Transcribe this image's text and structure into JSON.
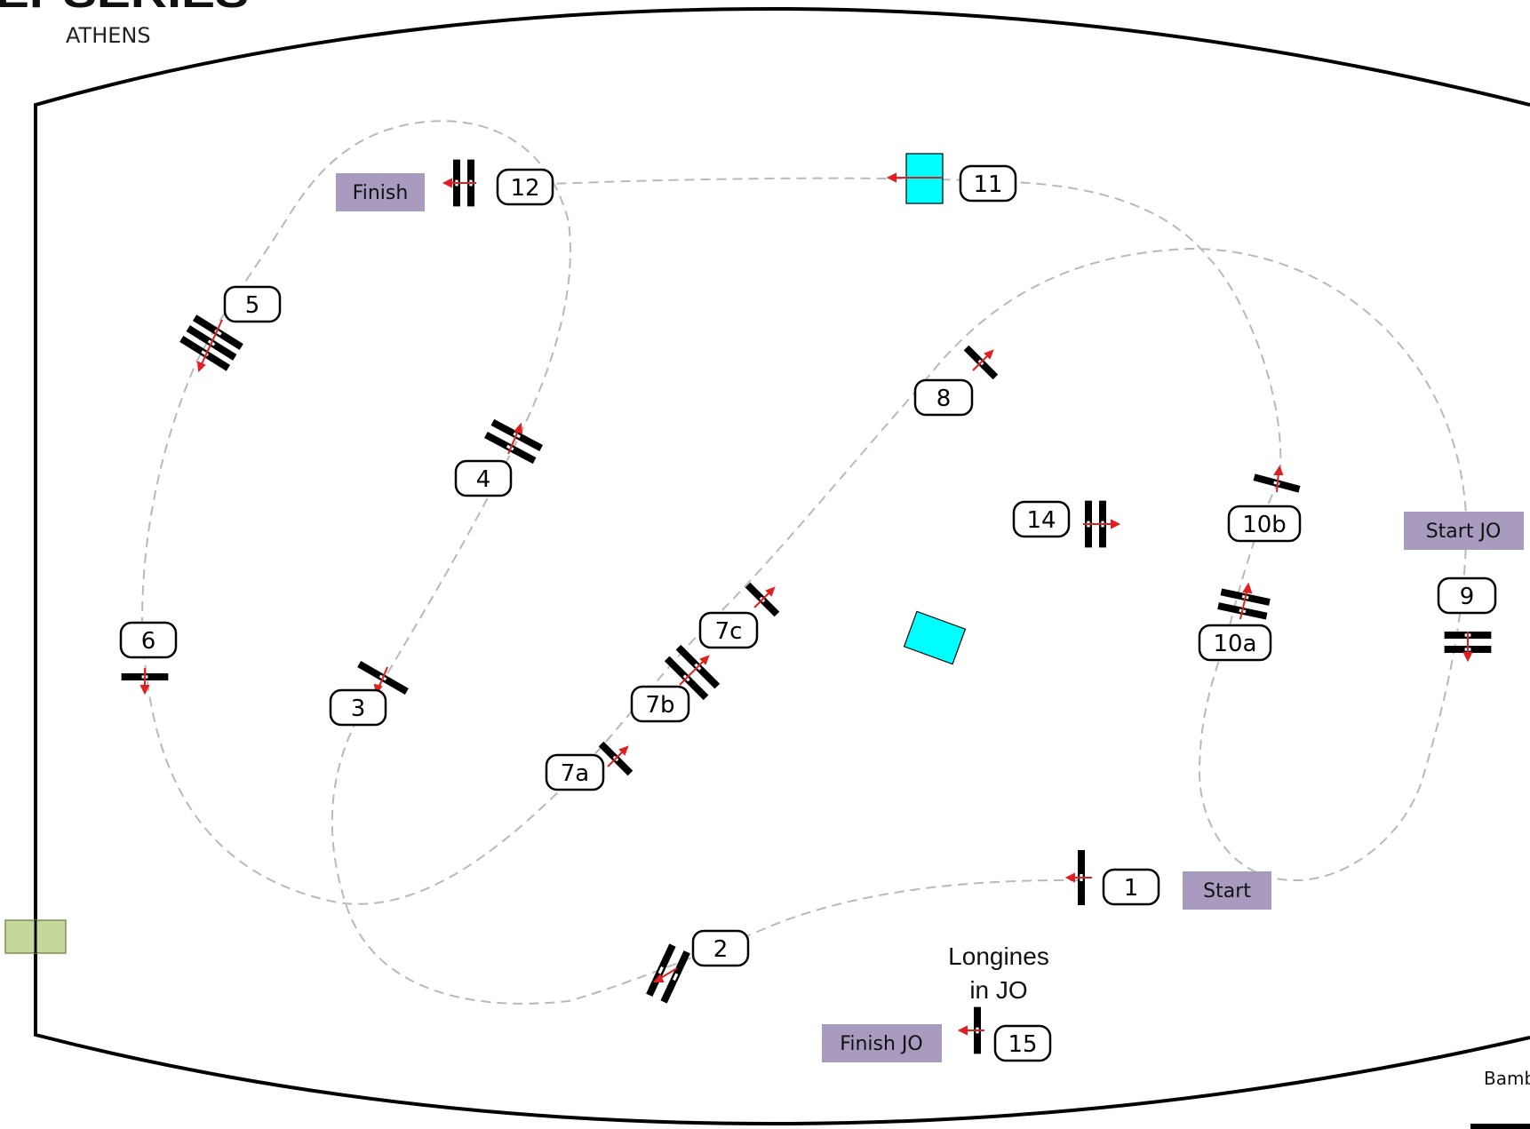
{
  "header": {
    "series_title": "LEPSERIES",
    "city": "ATHENS"
  },
  "footer": {
    "partial_text": "Bamb"
  },
  "note": {
    "line1": "Longines",
    "line2": "in JO"
  },
  "colors": {
    "label_box": "#a99bc0",
    "water": "#00ffff",
    "gate": "#c5d89c",
    "arrow": "#e02020",
    "route": "#b9b9b9"
  },
  "markers": {
    "finish": "Finish",
    "start_jo": "Start JO",
    "start": "Start",
    "finish_jo": "Finish JO"
  },
  "fences": {
    "f1": "1",
    "f2": "2",
    "f3": "3",
    "f4": "4",
    "f5": "5",
    "f6": "6",
    "f7a": "7a",
    "f7b": "7b",
    "f7c": "7c",
    "f8": "8",
    "f9": "9",
    "f10a": "10a",
    "f10b": "10b",
    "f11": "11",
    "f12": "12",
    "f14": "14",
    "f15": "15"
  }
}
